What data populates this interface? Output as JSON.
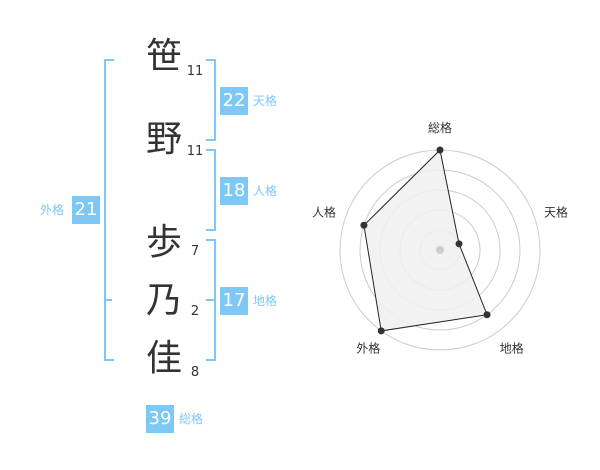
{
  "name_chars": [
    {
      "char": "笹",
      "strokes": "11"
    },
    {
      "char": "野",
      "strokes": "11"
    },
    {
      "char": "歩",
      "strokes": "7"
    },
    {
      "char": "乃",
      "strokes": "2"
    },
    {
      "char": "佳",
      "strokes": "8"
    }
  ],
  "kaku": {
    "tenkaku": {
      "label": "天格",
      "value": "22"
    },
    "jinkaku": {
      "label": "人格",
      "value": "18"
    },
    "chikaku": {
      "label": "地格",
      "value": "17"
    },
    "gaikaku": {
      "label": "外格",
      "value": "21"
    },
    "soukaku": {
      "label": "総格",
      "value": "39"
    }
  },
  "colors": {
    "accent": "#7dc8f5",
    "text": "#333333",
    "radar_fill": "#f0f0f0",
    "grid": "#cccccc"
  },
  "chart_data": {
    "type": "radar",
    "categories": [
      "総格",
      "天格",
      "地格",
      "外格",
      "人格"
    ],
    "values": [
      5,
      1,
      4,
      5,
      4
    ],
    "range": [
      0,
      5
    ],
    "rings": 5
  }
}
